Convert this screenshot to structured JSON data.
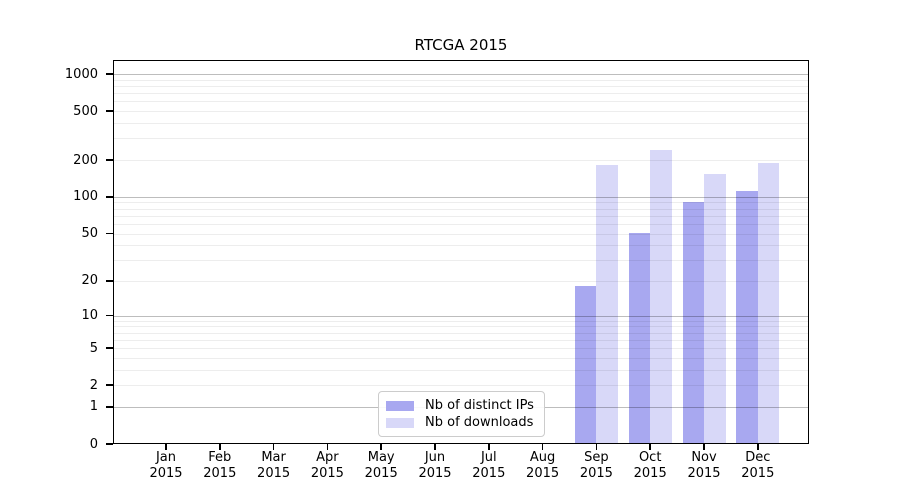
{
  "chart_data": {
    "type": "bar",
    "title": "RTCGA 2015",
    "categories": [
      "Jan 2015",
      "Feb 2015",
      "Mar 2015",
      "Apr 2015",
      "May 2015",
      "Jun 2015",
      "Jul 2015",
      "Aug 2015",
      "Sep 2015",
      "Oct 2015",
      "Nov 2015",
      "Dec 2015"
    ],
    "series": [
      {
        "name": "Nb of distinct IPs",
        "color": "#a8a8f0",
        "values": [
          0,
          0,
          0,
          0,
          0,
          0,
          0,
          0,
          18,
          50,
          91,
          112
        ]
      },
      {
        "name": "Nb of downloads",
        "color": "#d8d8f8",
        "values": [
          0,
          0,
          0,
          0,
          0,
          0,
          0,
          0,
          183,
          240,
          153,
          190
        ]
      }
    ],
    "y_scale": "log1p",
    "y_ticks": [
      0,
      1,
      2,
      5,
      10,
      20,
      50,
      100,
      200,
      500,
      1000
    ],
    "ylim": [
      0,
      1300
    ],
    "xlabel": "",
    "ylabel": "",
    "grid": true,
    "legend_position": "lower center"
  }
}
